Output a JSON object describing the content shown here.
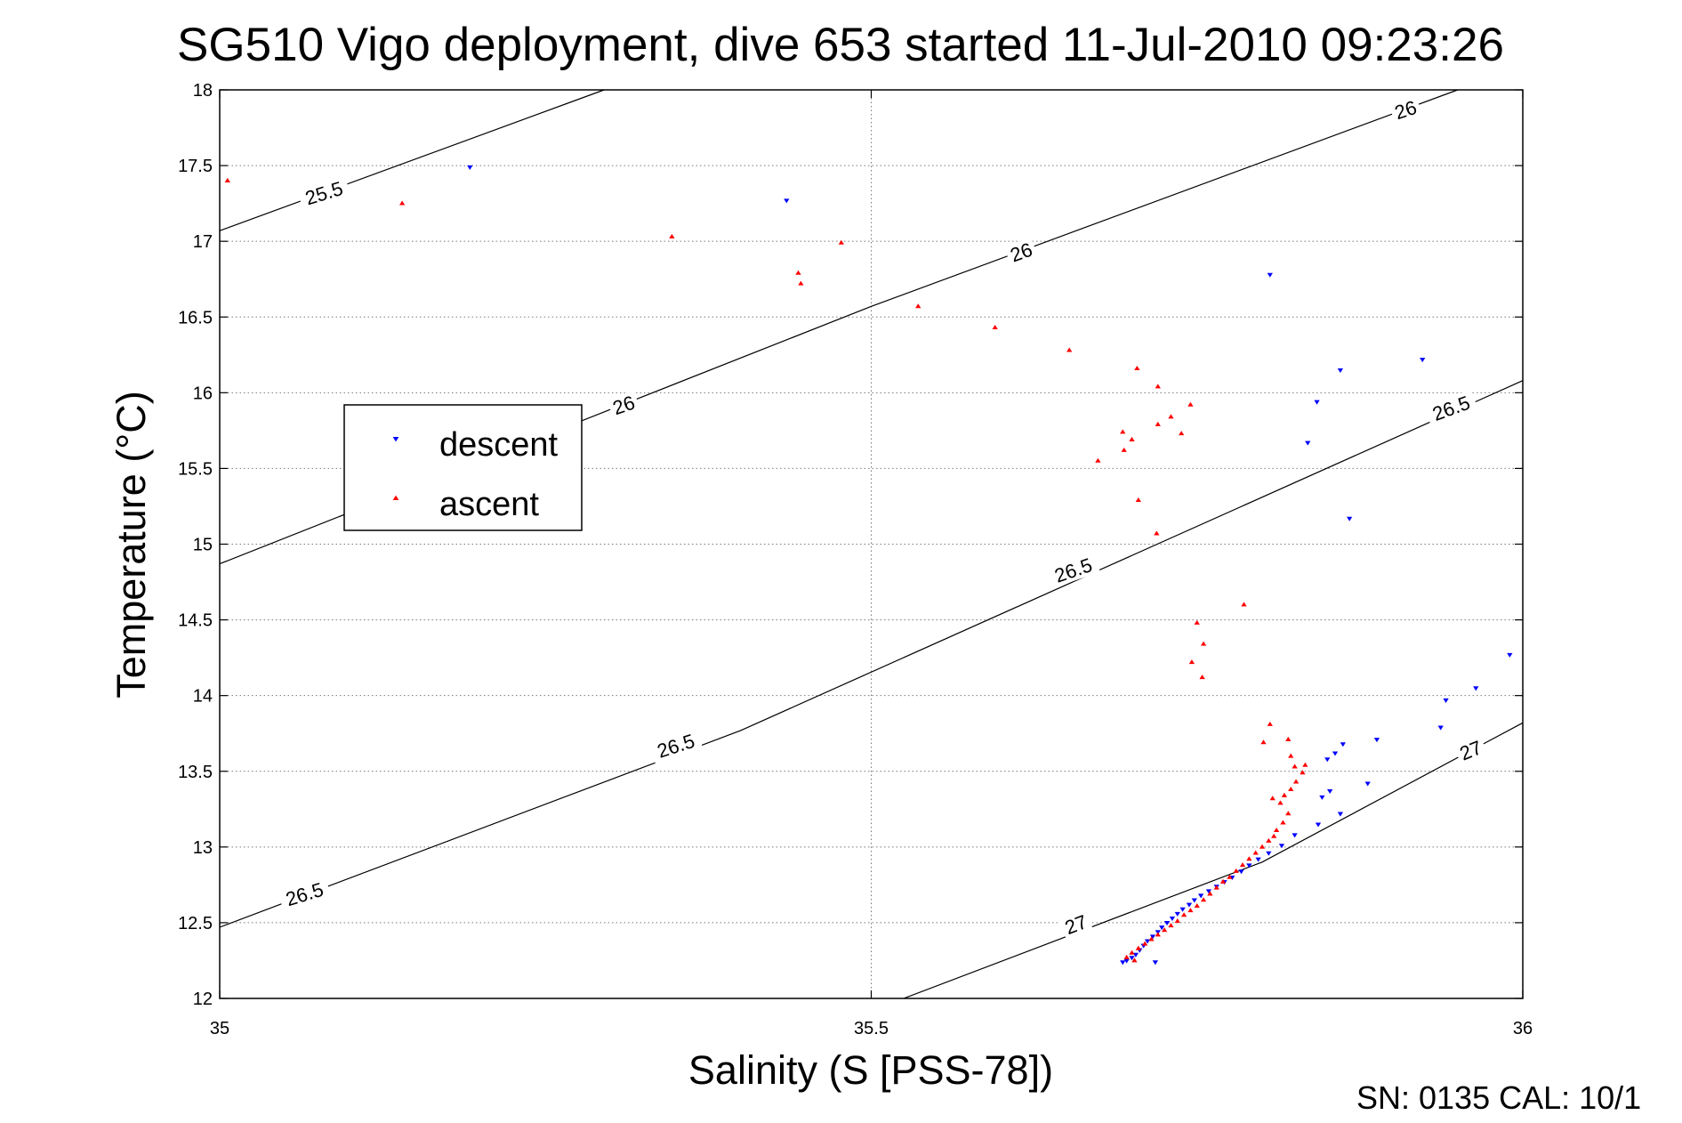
{
  "chart_data": {
    "type": "scatter",
    "title": "SG510 Vigo deployment, dive 653 started 11-Jul-2010 09:23:26",
    "xlabel": "Salinity (S [PSS-78])",
    "ylabel": "Temperature (°C)",
    "xlim": [
      35,
      36
    ],
    "ylim": [
      12,
      18
    ],
    "xticks": [
      "35",
      "35.5",
      "36"
    ],
    "yticks": [
      "12",
      "12.5",
      "13",
      "13.5",
      "14",
      "14.5",
      "15",
      "15.5",
      "16",
      "16.5",
      "17",
      "17.5",
      "18"
    ],
    "grid": true,
    "legend_position": "upper-left",
    "series": [
      {
        "name": "descent",
        "color": "#0000ff",
        "marker": "triangle-down",
        "points": [
          [
            35.192,
            17.49
          ],
          [
            35.435,
            17.27
          ],
          [
            35.806,
            16.78
          ],
          [
            35.923,
            16.22
          ],
          [
            35.86,
            16.15
          ],
          [
            35.842,
            15.94
          ],
          [
            35.835,
            15.67
          ],
          [
            35.867,
            15.17
          ],
          [
            35.99,
            14.27
          ],
          [
            35.964,
            14.05
          ],
          [
            35.941,
            13.97
          ],
          [
            35.937,
            13.79
          ],
          [
            35.888,
            13.71
          ],
          [
            35.862,
            13.68
          ],
          [
            35.856,
            13.62
          ],
          [
            35.85,
            13.58
          ],
          [
            35.881,
            13.42
          ],
          [
            35.852,
            13.37
          ],
          [
            35.846,
            13.33
          ],
          [
            35.86,
            13.22
          ],
          [
            35.843,
            13.15
          ],
          [
            35.825,
            13.08
          ],
          [
            35.815,
            13.01
          ],
          [
            35.805,
            12.96
          ],
          [
            35.797,
            12.92
          ],
          [
            35.79,
            12.88
          ],
          [
            35.784,
            12.84
          ],
          [
            35.777,
            12.8
          ],
          [
            35.771,
            12.77
          ],
          [
            35.765,
            12.74
          ],
          [
            35.759,
            12.71
          ],
          [
            35.753,
            12.68
          ],
          [
            35.748,
            12.65
          ],
          [
            35.744,
            12.62
          ],
          [
            35.739,
            12.59
          ],
          [
            35.735,
            12.56
          ],
          [
            35.731,
            12.53
          ],
          [
            35.727,
            12.5
          ],
          [
            35.723,
            12.47
          ],
          [
            35.72,
            12.44
          ],
          [
            35.716,
            12.41
          ],
          [
            35.712,
            12.38
          ],
          [
            35.709,
            12.35
          ],
          [
            35.706,
            12.32
          ],
          [
            35.703,
            12.29
          ],
          [
            35.7,
            12.27
          ],
          [
            35.696,
            12.25
          ],
          [
            35.693,
            12.24
          ],
          [
            35.718,
            12.24
          ]
        ]
      },
      {
        "name": "ascent",
        "color": "#ff0000",
        "marker": "triangle-up",
        "points": [
          [
            35.006,
            17.4
          ],
          [
            35.14,
            17.25
          ],
          [
            35.347,
            17.03
          ],
          [
            35.477,
            16.99
          ],
          [
            35.444,
            16.79
          ],
          [
            35.446,
            16.72
          ],
          [
            35.536,
            16.57
          ],
          [
            35.595,
            16.43
          ],
          [
            35.652,
            16.28
          ],
          [
            35.704,
            16.16
          ],
          [
            35.72,
            16.04
          ],
          [
            35.745,
            15.92
          ],
          [
            35.72,
            15.79
          ],
          [
            35.73,
            15.84
          ],
          [
            35.693,
            15.74
          ],
          [
            35.7,
            15.69
          ],
          [
            35.738,
            15.73
          ],
          [
            35.694,
            15.62
          ],
          [
            35.674,
            15.55
          ],
          [
            35.705,
            15.29
          ],
          [
            35.719,
            15.07
          ],
          [
            35.786,
            14.6
          ],
          [
            35.75,
            14.48
          ],
          [
            35.755,
            14.34
          ],
          [
            35.746,
            14.22
          ],
          [
            35.754,
            14.12
          ],
          [
            35.806,
            13.81
          ],
          [
            35.801,
            13.69
          ],
          [
            35.82,
            13.71
          ],
          [
            35.822,
            13.6
          ],
          [
            35.833,
            13.54
          ],
          [
            35.825,
            13.53
          ],
          [
            35.831,
            13.49
          ],
          [
            35.826,
            13.43
          ],
          [
            35.822,
            13.38
          ],
          [
            35.817,
            13.34
          ],
          [
            35.808,
            13.32
          ],
          [
            35.814,
            13.29
          ],
          [
            35.82,
            13.22
          ],
          [
            35.816,
            13.16
          ],
          [
            35.811,
            13.11
          ],
          [
            35.809,
            13.07
          ],
          [
            35.805,
            13.04
          ],
          [
            35.8,
            13.0
          ],
          [
            35.795,
            12.96
          ],
          [
            35.79,
            12.92
          ],
          [
            35.785,
            12.88
          ],
          [
            35.78,
            12.84
          ],
          [
            35.775,
            12.8
          ],
          [
            35.77,
            12.77
          ],
          [
            35.765,
            12.73
          ],
          [
            35.76,
            12.69
          ],
          [
            35.755,
            12.65
          ],
          [
            35.75,
            12.61
          ],
          [
            35.745,
            12.58
          ],
          [
            35.74,
            12.55
          ],
          [
            35.735,
            12.51
          ],
          [
            35.73,
            12.48
          ],
          [
            35.725,
            12.45
          ],
          [
            35.72,
            12.42
          ],
          [
            35.715,
            12.39
          ],
          [
            35.71,
            12.36
          ],
          [
            35.705,
            12.33
          ],
          [
            35.7,
            12.3
          ],
          [
            35.696,
            12.27
          ],
          [
            35.702,
            12.25
          ]
        ]
      }
    ],
    "contours": [
      {
        "level": "25.5",
        "points": [
          [
            35.0,
            17.07
          ],
          [
            35.295,
            18.0
          ]
        ],
        "labels": [
          [
            35.08,
            17.32,
            17
          ]
        ]
      },
      {
        "level": "26",
        "points": [
          [
            35.0,
            14.87
          ],
          [
            35.5,
            16.57
          ],
          [
            35.95,
            18.0
          ]
        ],
        "labels": [
          [
            35.31,
            15.92,
            19
          ],
          [
            35.615,
            16.93,
            20
          ],
          [
            35.91,
            17.87,
            18
          ]
        ]
      },
      {
        "level": "26.5",
        "points": [
          [
            35.0,
            12.47
          ],
          [
            35.4,
            13.77
          ],
          [
            36.0,
            16.08
          ]
        ],
        "labels": [
          [
            35.065,
            12.69,
            17
          ],
          [
            35.35,
            13.67,
            18
          ],
          [
            35.655,
            14.83,
            19
          ],
          [
            35.945,
            15.9,
            20
          ]
        ]
      },
      {
        "level": "27",
        "points": [
          [
            35.525,
            12.0
          ],
          [
            35.8,
            12.9
          ],
          [
            36.0,
            13.82
          ]
        ],
        "labels": [
          [
            35.657,
            12.49,
            21
          ],
          [
            35.96,
            13.64,
            22
          ]
        ]
      }
    ]
  },
  "footer": {
    "text": "SN: 0135  CAL: 10/1"
  }
}
